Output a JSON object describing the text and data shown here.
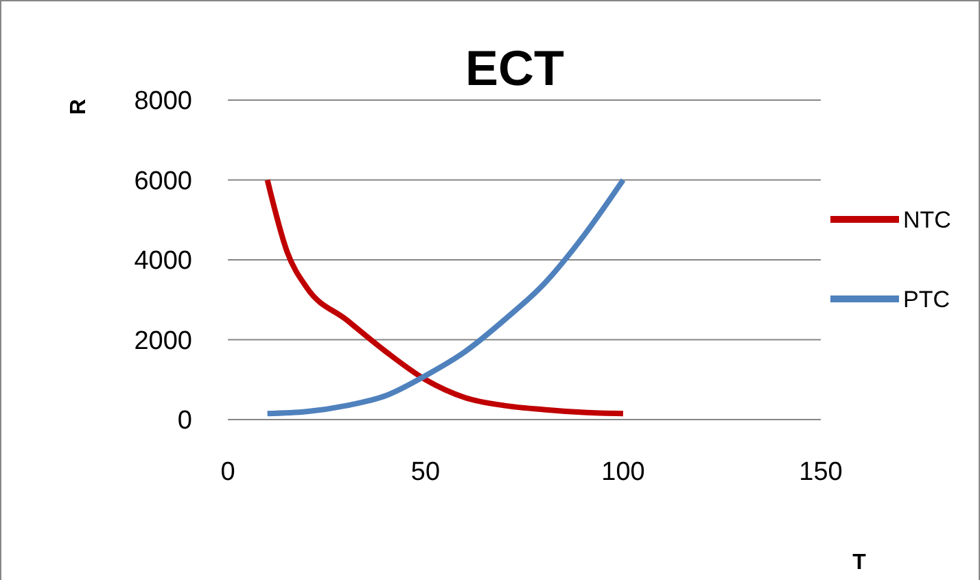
{
  "chart_data": {
    "type": "line",
    "title": "ECT",
    "xlabel": "T",
    "ylabel": "R",
    "xlim": [
      0,
      150
    ],
    "xticks": [
      0,
      50,
      100,
      150
    ],
    "ylim": [
      0,
      8000
    ],
    "yticks": [
      0,
      2000,
      4000,
      6000,
      8000
    ],
    "grid": "y",
    "legend": "right",
    "marker": "none",
    "line_style": "solid",
    "series": [
      {
        "name": "NTC",
        "color": "#c00000",
        "x": [
          10,
          15,
          20,
          30,
          40,
          50,
          60,
          70,
          80,
          90,
          100
        ],
        "values": [
          6000,
          4200,
          3300,
          2500,
          1700,
          1000,
          550,
          350,
          250,
          180,
          150
        ]
      },
      {
        "name": "PTC",
        "color": "#4f81bd",
        "x": [
          10,
          20,
          30,
          40,
          50,
          60,
          70,
          80,
          90,
          100
        ],
        "values": [
          150,
          200,
          350,
          600,
          1100,
          1700,
          2500,
          3400,
          4600,
          6000
        ]
      }
    ]
  }
}
